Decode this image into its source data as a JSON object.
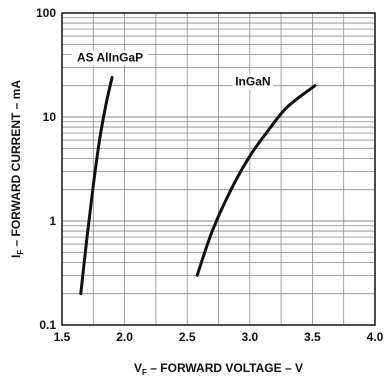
{
  "chart_data": {
    "type": "line",
    "x_axis": {
      "label_main": "V",
      "label_sub": "F",
      "label_rest": " – FORWARD VOLTAGE – V",
      "scale": "linear",
      "range": [
        1.5,
        4.0
      ],
      "ticks": [
        1.5,
        2.0,
        2.5,
        3.0,
        3.5,
        4.0
      ],
      "tick_labels": [
        "1.5",
        "2.0",
        "2.5",
        "3.0",
        "3.5",
        "4.0"
      ]
    },
    "y_axis": {
      "label_main": "I",
      "label_sub": "F",
      "label_rest": " – FORWARD CURRENT – mA",
      "scale": "log",
      "range": [
        0.1,
        100
      ],
      "ticks": [
        0.1,
        1,
        10,
        100
      ],
      "tick_labels": [
        "0.1",
        "1",
        "10",
        "100"
      ]
    },
    "grid": true,
    "series": [
      {
        "name": "AS AlInGaP",
        "color": "#111111",
        "points": [
          [
            1.65,
            0.2
          ],
          [
            1.7,
            0.7
          ],
          [
            1.75,
            2.2
          ],
          [
            1.8,
            6.0
          ],
          [
            1.85,
            13.0
          ],
          [
            1.9,
            24.0
          ]
        ]
      },
      {
        "name": "InGaN",
        "color": "#111111",
        "points": [
          [
            2.58,
            0.3
          ],
          [
            2.7,
            0.8
          ],
          [
            2.85,
            2.0
          ],
          [
            3.0,
            4.2
          ],
          [
            3.15,
            7.5
          ],
          [
            3.3,
            12.5
          ],
          [
            3.52,
            20.0
          ]
        ]
      }
    ]
  }
}
